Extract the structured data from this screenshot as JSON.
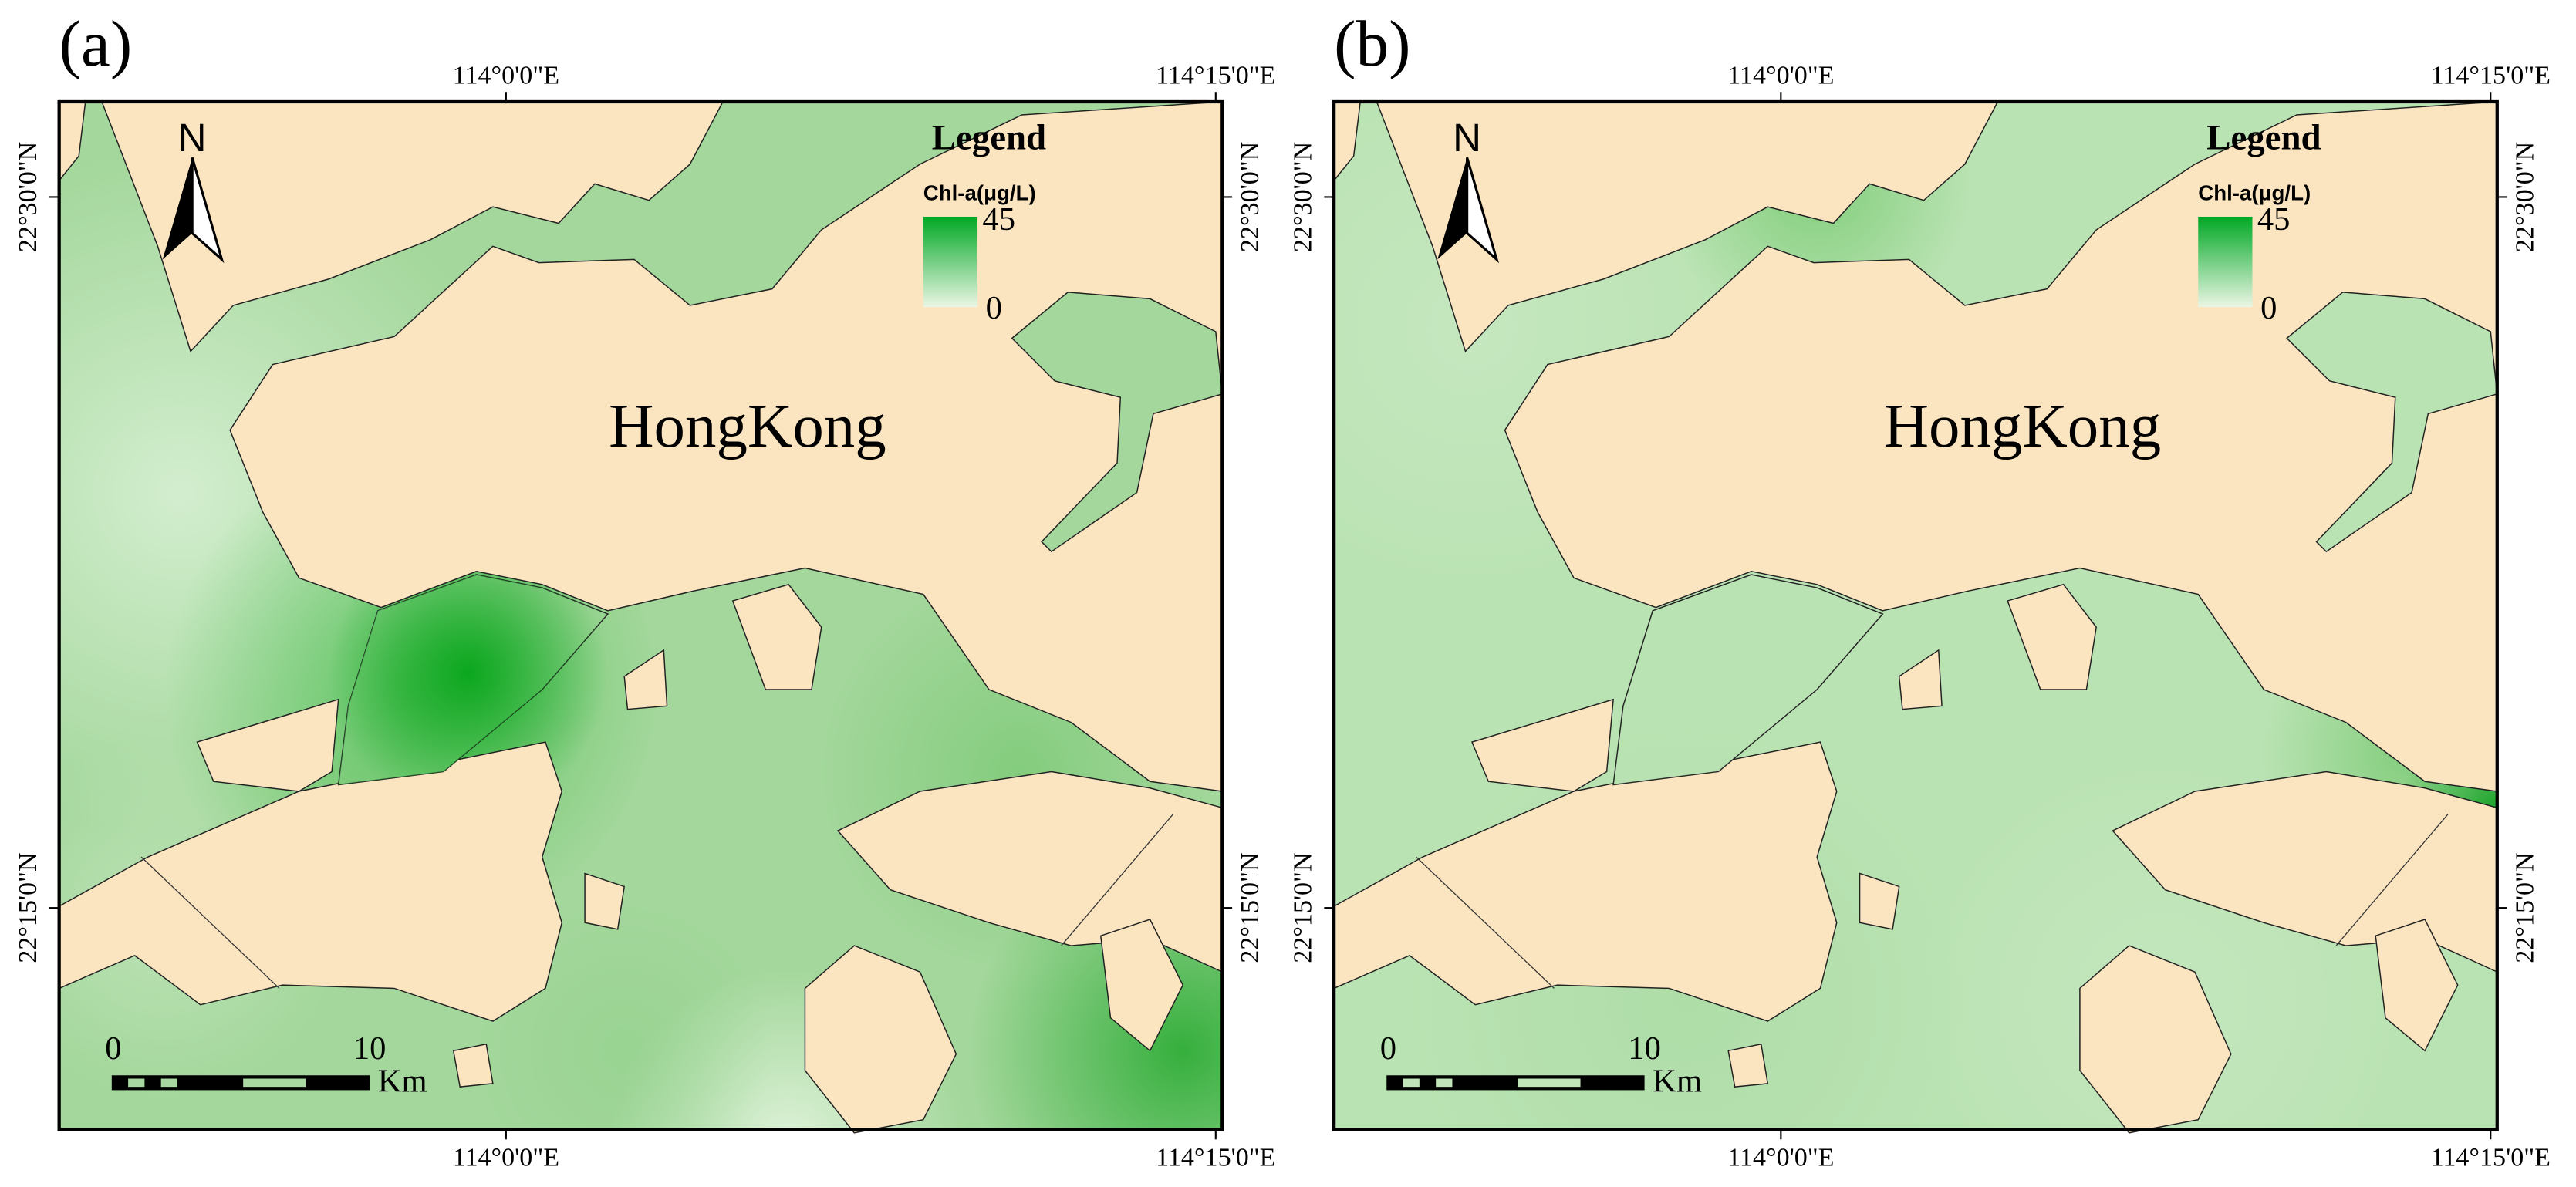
{
  "panels": [
    {
      "label": "(a)",
      "place": "HongKong",
      "north": "N",
      "legend": {
        "title": "Legend",
        "variable": "Chl-a(μg/L)",
        "max": 45,
        "min": 0
      },
      "scale": {
        "start": 0,
        "end": 10,
        "unit": "Km"
      },
      "axes": {
        "top": [
          "114°0'0\"E",
          "114°15'0\"E"
        ],
        "bottom": [
          "114°0'0\"E",
          "114°15'0\"E"
        ],
        "left": [
          "22°30'0\"N",
          "22°15'0\"N"
        ],
        "right": [
          "22°30'0\"N",
          "22°15'0\"N"
        ]
      }
    },
    {
      "label": "(b)",
      "place": "HongKong",
      "north": "N",
      "legend": {
        "title": "Legend",
        "variable": "Chl-a(μg/L)",
        "max": 45,
        "min": 0
      },
      "scale": {
        "start": 0,
        "end": 10,
        "unit": "Km"
      },
      "axes": {
        "top": [
          "114°0'0\"E",
          "114°15'0\"E"
        ],
        "bottom": [
          "114°0'0\"E",
          "114°15'0\"E"
        ],
        "left": [
          "22°30'0\"N",
          "22°15'0\"N"
        ],
        "right": [
          "22°30'0\"N",
          "22°15'0\"N"
        ]
      }
    }
  ]
}
